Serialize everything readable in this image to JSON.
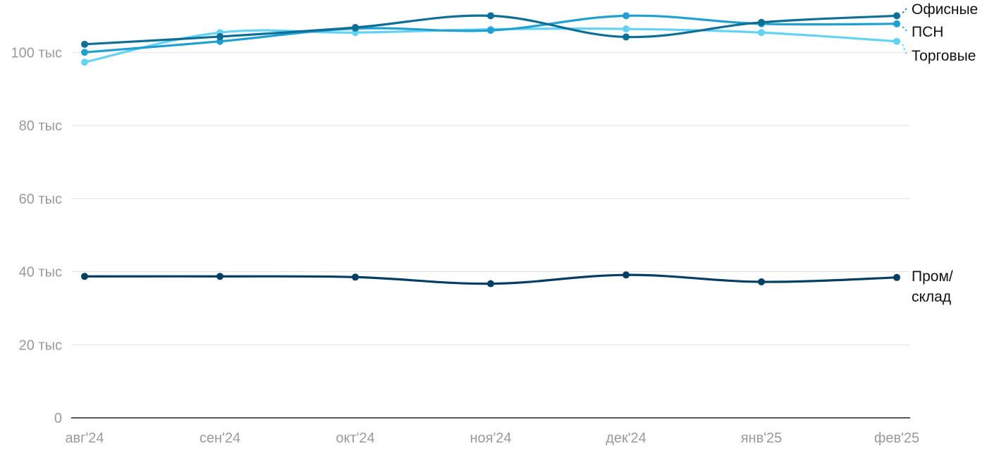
{
  "chart_data": {
    "type": "line",
    "title": "",
    "xlabel": "",
    "ylabel": "",
    "categories": [
      "авг'24",
      "сен'24",
      "окт'24",
      "ноя'24",
      "дек'24",
      "янв'25",
      "фев'25"
    ],
    "ylim": [
      0,
      112000
    ],
    "yticks": [
      {
        "value": 0,
        "label": "0"
      },
      {
        "value": 20000,
        "label": "20 тыс"
      },
      {
        "value": 40000,
        "label": "40 тыс"
      },
      {
        "value": 60000,
        "label": "60 тыс"
      },
      {
        "value": 80000,
        "label": "80 тыс"
      },
      {
        "value": 100000,
        "label": "100 тыс"
      }
    ],
    "grid": true,
    "legend": "direct-labels-right",
    "series": [
      {
        "name": "Офисные",
        "label_lines": [
          "Офисные"
        ],
        "color": "#0d6e96",
        "values": [
          102200,
          104300,
          106800,
          110000,
          104200,
          108200,
          110000
        ]
      },
      {
        "name": "ПСН",
        "label_lines": [
          "ПСН"
        ],
        "color": "#1fa0d0",
        "values": [
          100000,
          103000,
          106500,
          106000,
          110000,
          107800,
          107800
        ]
      },
      {
        "name": "Торговые",
        "label_lines": [
          "Торговые"
        ],
        "color": "#62d2f5",
        "values": [
          97300,
          105400,
          105400,
          106300,
          106400,
          105400,
          103000
        ]
      },
      {
        "name": "Пром/склад",
        "label_lines": [
          "Пром/",
          "склад"
        ],
        "color": "#053e63",
        "values": [
          38700,
          38700,
          38500,
          36700,
          39100,
          37200,
          38400
        ]
      }
    ]
  }
}
